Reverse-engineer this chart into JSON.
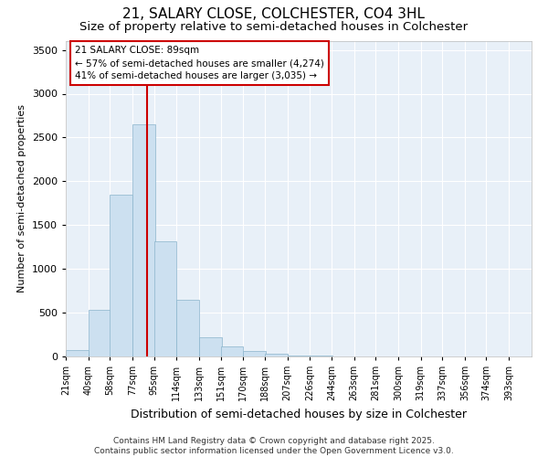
{
  "title": "21, SALARY CLOSE, COLCHESTER, CO4 3HL",
  "subtitle": "Size of property relative to semi-detached houses in Colchester",
  "xlabel": "Distribution of semi-detached houses by size in Colchester",
  "ylabel": "Number of semi-detached properties",
  "footer_line1": "Contains HM Land Registry data © Crown copyright and database right 2025.",
  "footer_line2": "Contains public sector information licensed under the Open Government Licence v3.0.",
  "annotation_title": "21 SALARY CLOSE: 89sqm",
  "annotation_line2": "← 57% of semi-detached houses are smaller (4,274)",
  "annotation_line3": "41% of semi-detached houses are larger (3,035) →",
  "bar_color": "#cce0f0",
  "bar_edge_color": "#8ab4cc",
  "vline_color": "#cc0000",
  "vline_x": 89,
  "categories": [
    21,
    40,
    58,
    77,
    95,
    114,
    133,
    151,
    170,
    188,
    207,
    226,
    244,
    263,
    281,
    300,
    319,
    337,
    356,
    374,
    393
  ],
  "values": [
    70,
    530,
    1850,
    2650,
    1310,
    650,
    220,
    110,
    60,
    35,
    15,
    8,
    5,
    3,
    2,
    1,
    1,
    0,
    0,
    0,
    0
  ],
  "ylim": [
    0,
    3600
  ],
  "yticks": [
    0,
    500,
    1000,
    1500,
    2000,
    2500,
    3000,
    3500
  ],
  "background_color": "#ffffff",
  "plot_bg_color": "#e8f0f8",
  "grid_color": "#ffffff",
  "title_fontsize": 11,
  "subtitle_fontsize": 9.5,
  "ylabel_fontsize": 8,
  "xlabel_fontsize": 9,
  "tick_fontsize": 7,
  "ytick_fontsize": 8,
  "annotation_box_color": "#ffffff",
  "annotation_box_edge": "#cc0000",
  "annotation_fontsize": 7.5,
  "footer_fontsize": 6.5
}
